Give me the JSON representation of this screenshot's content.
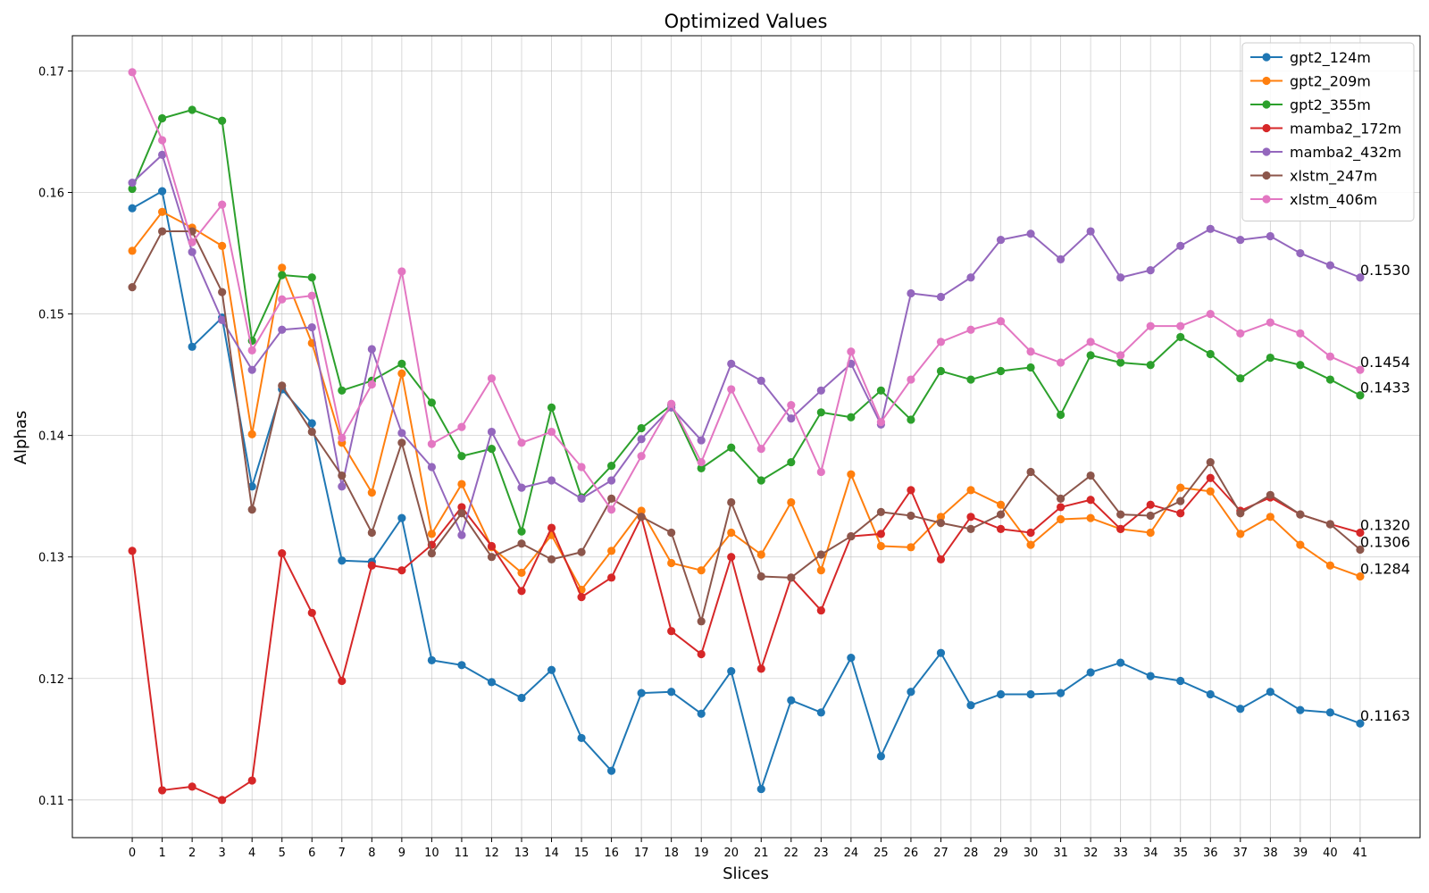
{
  "chart_data": {
    "type": "line",
    "title": "Optimized Values",
    "xlabel": "Slices",
    "ylabel": "Alphas",
    "x": [
      0,
      1,
      2,
      3,
      4,
      5,
      6,
      7,
      8,
      9,
      10,
      11,
      12,
      13,
      14,
      15,
      16,
      17,
      18,
      19,
      20,
      21,
      22,
      23,
      24,
      25,
      26,
      27,
      28,
      29,
      30,
      31,
      32,
      33,
      34,
      35,
      36,
      37,
      38,
      39,
      40,
      41
    ],
    "xlim": [
      -2.0,
      43.0
    ],
    "ylim": [
      0.1069,
      0.1729
    ],
    "yticks": [
      0.11,
      0.12,
      0.13,
      0.14,
      0.15,
      0.16,
      0.17
    ],
    "ytick_labels": [
      "0.11",
      "0.12",
      "0.13",
      "0.14",
      "0.15",
      "0.16",
      "0.17"
    ],
    "grid": true,
    "legend_position": "top-right",
    "series": [
      {
        "name": "gpt2_124m",
        "color": "#1f77b4",
        "end_label": "0.1163",
        "values": [
          0.1587,
          0.1601,
          0.1473,
          0.1497,
          0.1358,
          0.1438,
          0.141,
          0.1297,
          0.1296,
          0.1332,
          0.1215,
          0.1211,
          0.1197,
          0.1184,
          0.1207,
          0.1151,
          0.1124,
          0.1188,
          0.1189,
          0.1171,
          0.1206,
          0.1109,
          0.1182,
          0.1172,
          0.1217,
          0.1136,
          0.1189,
          0.1221,
          0.1178,
          0.1187,
          0.1187,
          0.1188,
          0.1205,
          0.1213,
          0.1202,
          0.1198,
          0.1187,
          0.1175,
          0.1189,
          0.1174,
          0.1172,
          0.1163
        ]
      },
      {
        "name": "gpt2_209m",
        "color": "#ff7f0e",
        "end_label": "0.1284",
        "values": [
          0.1552,
          0.1584,
          0.1571,
          0.1556,
          0.1401,
          0.1538,
          0.1476,
          0.1394,
          0.1353,
          0.1451,
          0.1319,
          0.136,
          0.1308,
          0.1287,
          0.1318,
          0.1273,
          0.1305,
          0.1338,
          0.1295,
          0.1289,
          0.132,
          0.1302,
          0.1345,
          0.1289,
          0.1368,
          0.1309,
          0.1308,
          0.1333,
          0.1355,
          0.1343,
          0.131,
          0.1331,
          0.1332,
          0.1323,
          0.132,
          0.1357,
          0.1354,
          0.1319,
          0.1333,
          0.131,
          0.1293,
          0.1284
        ]
      },
      {
        "name": "gpt2_355m",
        "color": "#2ca02c",
        "end_label": "0.1433",
        "values": [
          0.1603,
          0.1661,
          0.1668,
          0.1659,
          0.1478,
          0.1532,
          0.153,
          0.1437,
          0.1445,
          0.1459,
          0.1427,
          0.1383,
          0.1389,
          0.1321,
          0.1423,
          0.1349,
          0.1375,
          0.1406,
          0.1425,
          0.1373,
          0.139,
          0.1363,
          0.1378,
          0.1419,
          0.1415,
          0.1437,
          0.1413,
          0.1453,
          0.1446,
          0.1453,
          0.1456,
          0.1417,
          0.1466,
          0.146,
          0.1458,
          0.1481,
          0.1467,
          0.1447,
          0.1464,
          0.1458,
          0.1446,
          0.1433
        ]
      },
      {
        "name": "mamba2_172m",
        "color": "#d62728",
        "end_label": "0.1320",
        "values": [
          0.1305,
          0.1108,
          0.1111,
          0.11,
          0.1116,
          0.1303,
          0.1254,
          0.1198,
          0.1293,
          0.1289,
          0.131,
          0.1341,
          0.1309,
          0.1272,
          0.1324,
          0.1267,
          0.1283,
          0.1333,
          0.1239,
          0.122,
          0.13,
          0.1208,
          0.1283,
          0.1256,
          0.1317,
          0.1319,
          0.1355,
          0.1298,
          0.1333,
          0.1323,
          0.132,
          0.1341,
          0.1347,
          0.1323,
          0.1343,
          0.1336,
          0.1365,
          0.1338,
          0.1349,
          0.1335,
          0.1327,
          0.132
        ]
      },
      {
        "name": "mamba2_432m",
        "color": "#9467bd",
        "end_label": "0.1530",
        "values": [
          0.1608,
          0.1631,
          0.1551,
          0.1495,
          0.1454,
          0.1487,
          0.1489,
          0.1358,
          0.1471,
          0.1402,
          0.1374,
          0.1318,
          0.1403,
          0.1357,
          0.1363,
          0.1348,
          0.1363,
          0.1397,
          0.1423,
          0.1396,
          0.1459,
          0.1445,
          0.1414,
          0.1437,
          0.1459,
          0.1409,
          0.1517,
          0.1514,
          0.153,
          0.1561,
          0.1566,
          0.1545,
          0.1568,
          0.153,
          0.1536,
          0.1556,
          0.157,
          0.1561,
          0.1564,
          0.155,
          0.154,
          0.153
        ]
      },
      {
        "name": "xlstm_247m",
        "color": "#8c564b",
        "end_label": "0.1306",
        "values": [
          0.1522,
          0.1568,
          0.1568,
          0.1518,
          0.1339,
          0.1441,
          0.1403,
          0.1367,
          0.132,
          0.1394,
          0.1303,
          0.1336,
          0.13,
          0.1311,
          0.1298,
          0.1304,
          0.1348,
          0.1333,
          0.132,
          0.1247,
          0.1345,
          0.1284,
          0.1283,
          0.1302,
          0.1317,
          0.1337,
          0.1334,
          0.1328,
          0.1323,
          0.1335,
          0.137,
          0.1348,
          0.1367,
          0.1335,
          0.1334,
          0.1346,
          0.1378,
          0.1336,
          0.1351,
          0.1335,
          0.1327,
          0.1306
        ]
      },
      {
        "name": "xlstm_406m",
        "color": "#e377c2",
        "end_label": "0.1454",
        "values": [
          0.1699,
          0.1643,
          0.1559,
          0.159,
          0.147,
          0.1512,
          0.1515,
          0.1398,
          0.1442,
          0.1535,
          0.1393,
          0.1407,
          0.1447,
          0.1394,
          0.1403,
          0.1374,
          0.1339,
          0.1383,
          0.1426,
          0.1378,
          0.1438,
          0.1389,
          0.1425,
          0.137,
          0.1469,
          0.1411,
          0.1446,
          0.1477,
          0.1487,
          0.1494,
          0.1469,
          0.146,
          0.1477,
          0.1466,
          0.149,
          0.149,
          0.15,
          0.1484,
          0.1493,
          0.1484,
          0.1465,
          0.1454
        ]
      }
    ]
  }
}
